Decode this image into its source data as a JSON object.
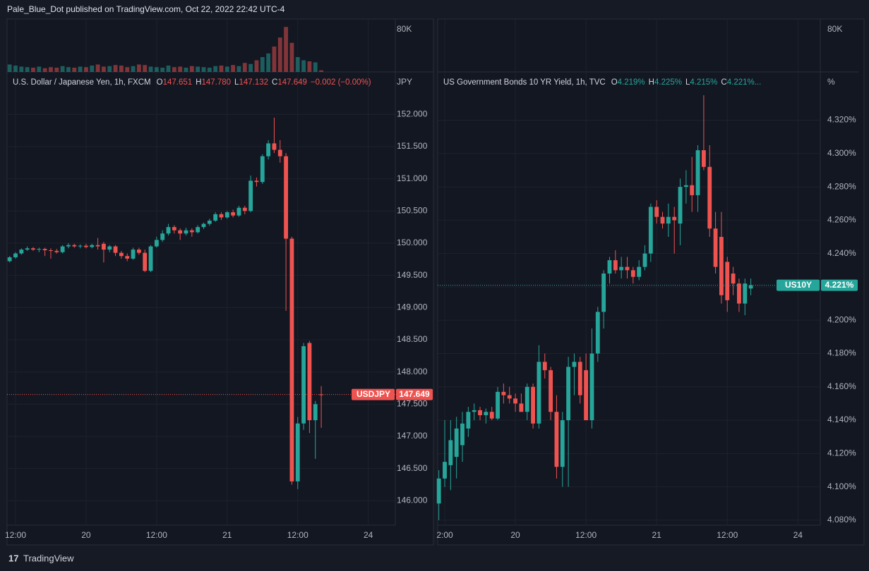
{
  "header": "Pale_Blue_Dot published on TradingView.com, Oct 22, 2022 22:42 UTC-4",
  "footer": "TradingView",
  "chart_data": [
    {
      "type": "candlestick",
      "title": "U.S. Dollar / Japanese Yen, 1h, FXCM",
      "legend": [
        {
          "key": "O",
          "value": "147.651"
        },
        {
          "key": "H",
          "value": "147.780"
        },
        {
          "key": "L",
          "value": "147.132"
        },
        {
          "key": "C",
          "value": "147.649"
        }
      ],
      "change": "−0.002 (−0.00%)",
      "ylabel": "JPY",
      "symbol": "USDJPY",
      "last_label": "147.649",
      "up_color": "#26a69a",
      "down_color": "#ef5350",
      "grid": true,
      "xlim": [
        -1.44,
        64.6
      ],
      "xticks": [
        {
          "value": 0,
          "label": "12:00"
        },
        {
          "value": 12,
          "label": "20"
        },
        {
          "value": 24,
          "label": "12:00"
        },
        {
          "value": 36,
          "label": "21"
        },
        {
          "value": 48,
          "label": "12:00"
        },
        {
          "value": 60,
          "label": "24"
        }
      ],
      "ylim": [
        145.62,
        152.66
      ],
      "yticks": [
        {
          "value": 146,
          "label": "146.000"
        },
        {
          "value": 146.5,
          "label": "146.500"
        },
        {
          "value": 147,
          "label": "147.000"
        },
        {
          "value": 147.5,
          "label": "147.500"
        },
        {
          "value": 148,
          "label": "148.000"
        },
        {
          "value": 148.5,
          "label": "148.500"
        },
        {
          "value": 149,
          "label": "149.000"
        },
        {
          "value": 149.5,
          "label": "149.500"
        },
        {
          "value": 150,
          "label": "150.000"
        },
        {
          "value": 150.5,
          "label": "150.500"
        },
        {
          "value": 151,
          "label": "151.000"
        },
        {
          "value": 151.5,
          "label": "151.500"
        },
        {
          "value": 152,
          "label": "152.000"
        }
      ],
      "volume_ylim": [
        0,
        100000
      ],
      "volume_ticks": [
        {
          "value": 80000,
          "label": "80K"
        }
      ],
      "x": [
        -1,
        0,
        1,
        2,
        3,
        4,
        5,
        6,
        7,
        8,
        9,
        10,
        11,
        12,
        13,
        14,
        15,
        16,
        17,
        18,
        19,
        20,
        21,
        22,
        23,
        24,
        25,
        26,
        27,
        28,
        29,
        30,
        31,
        32,
        33,
        34,
        35,
        36,
        37,
        38,
        39,
        40,
        41,
        42,
        43,
        44,
        45,
        46,
        47,
        48,
        49,
        50,
        51,
        52
      ],
      "candles": [
        [
          149.72,
          149.8,
          149.7,
          149.78
        ],
        [
          149.78,
          149.86,
          149.76,
          149.84
        ],
        [
          149.84,
          149.92,
          149.82,
          149.9
        ],
        [
          149.9,
          149.95,
          149.88,
          149.92
        ],
        [
          149.92,
          149.94,
          149.88,
          149.9
        ],
        [
          149.9,
          149.93,
          149.86,
          149.91
        ],
        [
          149.91,
          149.93,
          149.8,
          149.89
        ],
        [
          149.89,
          149.92,
          149.76,
          149.88
        ],
        [
          149.88,
          149.91,
          149.84,
          149.86
        ],
        [
          149.86,
          149.97,
          149.84,
          149.95
        ],
        [
          149.95,
          150,
          149.92,
          149.97
        ],
        [
          149.97,
          149.99,
          149.93,
          149.95
        ],
        [
          149.95,
          149.98,
          149.92,
          149.96
        ],
        [
          149.96,
          149.99,
          149.92,
          149.94
        ],
        [
          149.94,
          149.99,
          149.92,
          149.97
        ],
        [
          149.97,
          150.08,
          149.9,
          149.95
        ],
        [
          149.99,
          150.02,
          149.7,
          149.9
        ],
        [
          149.9,
          149.97,
          149.86,
          149.95
        ],
        [
          149.95,
          149.97,
          149.8,
          149.85
        ],
        [
          149.85,
          149.88,
          149.76,
          149.8
        ],
        [
          149.8,
          149.84,
          149.72,
          149.76
        ],
        [
          149.76,
          149.93,
          149.74,
          149.9
        ],
        [
          149.9,
          149.93,
          149.82,
          149.85
        ],
        [
          149.85,
          149.9,
          149.55,
          149.57
        ],
        [
          149.57,
          149.97,
          149.55,
          149.95
        ],
        [
          149.95,
          150.1,
          149.93,
          150.05
        ],
        [
          150.05,
          150.2,
          150.02,
          150.15
        ],
        [
          150.15,
          150.3,
          150.12,
          150.25
        ],
        [
          150.25,
          150.28,
          150.15,
          150.2
        ],
        [
          150.2,
          150.23,
          150.05,
          150.15
        ],
        [
          150.15,
          150.24,
          150.12,
          150.2
        ],
        [
          150.2,
          150.23,
          150.1,
          150.17
        ],
        [
          150.17,
          150.28,
          150.15,
          150.25
        ],
        [
          150.25,
          150.32,
          150.22,
          150.3
        ],
        [
          150.3,
          150.38,
          150.27,
          150.35
        ],
        [
          150.35,
          150.48,
          150.33,
          150.45
        ],
        [
          150.45,
          150.48,
          150.36,
          150.4
        ],
        [
          150.4,
          150.5,
          150.38,
          150.48
        ],
        [
          150.48,
          150.52,
          150.4,
          150.43
        ],
        [
          150.43,
          150.58,
          150.41,
          150.55
        ],
        [
          150.55,
          150.58,
          150.45,
          150.5
        ],
        [
          150.5,
          151.05,
          150.48,
          150.97
        ],
        [
          150.97,
          151.02,
          150.88,
          150.95
        ],
        [
          150.95,
          151.38,
          150.92,
          151.35
        ],
        [
          151.35,
          151.6,
          151.3,
          151.55
        ],
        [
          151.55,
          151.95,
          151.4,
          151.45
        ],
        [
          151.45,
          151.6,
          151.25,
          151.35
        ],
        [
          151.35,
          151.4,
          148.95,
          150.07
        ],
        [
          150.07,
          150.1,
          146.25,
          146.3
        ],
        [
          146.3,
          147.3,
          146.18,
          147.2
        ],
        [
          147.2,
          148.45,
          147.1,
          148.4
        ],
        [
          148.45,
          148.48,
          147.05,
          147.25
        ],
        [
          147.25,
          147.55,
          146.65,
          147.5
        ],
        [
          147.651,
          147.78,
          147.132,
          147.649
        ]
      ],
      "volume": [
        14000,
        12000,
        10000,
        9000,
        8000,
        10000,
        7000,
        9000,
        8000,
        11000,
        9000,
        8000,
        10000,
        9000,
        12000,
        14000,
        10000,
        11000,
        13000,
        12000,
        9000,
        11000,
        14000,
        13000,
        10000,
        9000,
        8000,
        12000,
        9000,
        10000,
        8000,
        11000,
        10000,
        9000,
        8000,
        11000,
        12000,
        10000,
        13000,
        11000,
        17000,
        15000,
        22000,
        28000,
        35000,
        48000,
        65000,
        85000,
        55000,
        28000,
        22000,
        20000,
        18000,
        3000
      ]
    },
    {
      "type": "candlestick",
      "title": "US Government Bonds 10 YR Yield, 1h, TVC",
      "legend": [
        {
          "key": "O",
          "value": "4.219%"
        },
        {
          "key": "H",
          "value": "4.225%"
        },
        {
          "key": "L",
          "value": "4.215%"
        },
        {
          "key": "C",
          "value": "4.221%..."
        }
      ],
      "ylabel": "%",
      "symbol": "US10Y",
      "last_label": "4.221%",
      "up_color": "#26a69a",
      "down_color": "#ef5350",
      "grid": true,
      "xlim": [
        -1.2,
        63.8
      ],
      "xticks": [
        {
          "value": 0,
          "label": "2:00"
        },
        {
          "value": 12,
          "label": "20"
        },
        {
          "value": 24,
          "label": "12:00"
        },
        {
          "value": 36,
          "label": "21"
        },
        {
          "value": 48,
          "label": "12:00"
        },
        {
          "value": 60,
          "label": "24"
        }
      ],
      "ylim": [
        4.077,
        4.349
      ],
      "yticks": [
        {
          "value": 4.08,
          "label": "4.080%"
        },
        {
          "value": 4.1,
          "label": "4.100%"
        },
        {
          "value": 4.12,
          "label": "4.120%"
        },
        {
          "value": 4.14,
          "label": "4.140%"
        },
        {
          "value": 4.16,
          "label": "4.160%"
        },
        {
          "value": 4.18,
          "label": "4.180%"
        },
        {
          "value": 4.2,
          "label": "4.200%"
        },
        {
          "value": 4.22,
          "label": "4.220%"
        },
        {
          "value": 4.24,
          "label": "4.240%"
        },
        {
          "value": 4.26,
          "label": "4.260%"
        },
        {
          "value": 4.28,
          "label": "4.280%"
        },
        {
          "value": 4.3,
          "label": "4.300%"
        },
        {
          "value": 4.32,
          "label": "4.320%"
        }
      ],
      "volume_ylim": [
        0,
        100000
      ],
      "volume_ticks": [
        {
          "value": 80000,
          "label": "80K"
        }
      ],
      "x": [
        -1,
        0,
        1,
        2,
        3,
        4,
        5,
        6,
        7,
        8,
        9,
        10,
        11,
        12,
        13,
        14,
        15,
        16,
        17,
        18,
        19,
        20,
        21,
        22,
        23,
        24,
        25,
        26,
        27,
        28,
        29,
        30,
        31,
        32,
        33,
        34,
        35,
        36,
        37,
        38,
        39,
        40,
        41,
        42,
        43,
        44,
        45,
        46,
        47,
        48,
        49,
        50,
        51,
        52
      ],
      "candles": [
        [
          4.09,
          4.11,
          4.08,
          4.105
        ],
        [
          4.105,
          4.14,
          4.1,
          4.115
        ],
        [
          4.113,
          4.14,
          4.098,
          4.128
        ],
        [
          4.118,
          4.142,
          4.105,
          4.135
        ],
        [
          4.125,
          4.145,
          4.115,
          4.138
        ],
        [
          4.135,
          4.148,
          4.13,
          4.145
        ],
        [
          4.145,
          4.15,
          4.14,
          4.146
        ],
        [
          4.146,
          4.148,
          4.14,
          4.143
        ],
        [
          4.143,
          4.147,
          4.138,
          4.145
        ],
        [
          4.145,
          4.148,
          4.14,
          4.141
        ],
        [
          4.141,
          4.16,
          4.14,
          4.157
        ],
        [
          4.157,
          4.162,
          4.15,
          4.155
        ],
        [
          4.155,
          4.16,
          4.15,
          4.153
        ],
        [
          4.153,
          4.156,
          4.145,
          4.15
        ],
        [
          4.15,
          4.156,
          4.145,
          4.145
        ],
        [
          4.145,
          4.162,
          4.14,
          4.16
        ],
        [
          4.16,
          4.162,
          4.135,
          4.138
        ],
        [
          4.138,
          4.185,
          4.135,
          4.175
        ],
        [
          4.175,
          4.18,
          4.165,
          4.17
        ],
        [
          4.17,
          4.172,
          4.14,
          4.145
        ],
        [
          4.145,
          4.155,
          4.105,
          4.112
        ],
        [
          4.112,
          4.145,
          4.1,
          4.14
        ],
        [
          4.14,
          4.178,
          4.1,
          4.172
        ],
        [
          4.172,
          4.18,
          4.155,
          4.175
        ],
        [
          4.175,
          4.178,
          4.15,
          4.155
        ],
        [
          4.17,
          4.18,
          4.14,
          4.14
        ],
        [
          4.14,
          4.195,
          4.135,
          4.18
        ],
        [
          4.18,
          4.208,
          4.175,
          4.205
        ],
        [
          4.205,
          4.23,
          4.195,
          4.228
        ],
        [
          4.228,
          4.238,
          4.222,
          4.236
        ],
        [
          4.236,
          4.242,
          4.228,
          4.23
        ],
        [
          4.23,
          4.238,
          4.225,
          4.232
        ],
        [
          4.232,
          4.238,
          4.225,
          4.23
        ],
        [
          4.23,
          4.232,
          4.222,
          4.226
        ],
        [
          4.226,
          4.236,
          4.224,
          4.232
        ],
        [
          4.232,
          4.245,
          4.23,
          4.24
        ],
        [
          4.24,
          4.27,
          4.235,
          4.268
        ],
        [
          4.268,
          4.272,
          4.258,
          4.262
        ],
        [
          4.262,
          4.265,
          4.255,
          4.258
        ],
        [
          4.258,
          4.27,
          4.25,
          4.262
        ],
        [
          4.262,
          4.268,
          4.24,
          4.26
        ],
        [
          4.258,
          4.285,
          4.245,
          4.28
        ],
        [
          4.28,
          4.29,
          4.27,
          4.281
        ],
        [
          4.281,
          4.298,
          4.265,
          4.275
        ],
        [
          4.275,
          4.305,
          4.265,
          4.302
        ],
        [
          4.302,
          4.335,
          4.29,
          4.292
        ],
        [
          4.292,
          4.305,
          4.25,
          4.255
        ],
        [
          4.255,
          4.265,
          4.228,
          4.232
        ],
        [
          4.25,
          4.265,
          4.21,
          4.215
        ],
        [
          4.235,
          4.238,
          4.205,
          4.212
        ],
        [
          4.228,
          4.232,
          4.215,
          4.222
        ],
        [
          4.222,
          4.225,
          4.205,
          4.21
        ],
        [
          4.21,
          4.225,
          4.203,
          4.222
        ],
        [
          4.219,
          4.225,
          4.215,
          4.221
        ]
      ]
    }
  ]
}
